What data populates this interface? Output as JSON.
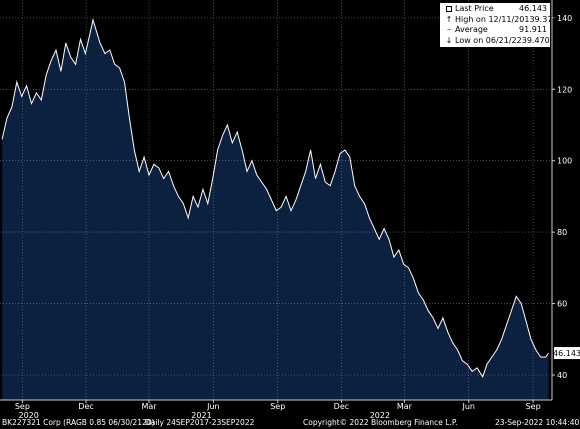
{
  "chart_data": {
    "type": "area",
    "title": "",
    "xlabel": "",
    "ylabel": "",
    "ylim": [
      33,
      145
    ],
    "yticks": [
      40,
      60,
      80,
      100,
      120,
      140
    ],
    "xlim": [
      "2020-07-31",
      "2022-09-28"
    ],
    "month_ticks": [
      "Sep",
      "Dec",
      "Mar",
      "Jun",
      "Sep",
      "Dec",
      "Mar",
      "Jun",
      "Sep"
    ],
    "month_tick_dates": [
      "2020-09-01",
      "2020-12-01",
      "2021-03-01",
      "2021-06-01",
      "2021-09-01",
      "2021-12-01",
      "2022-03-01",
      "2022-06-01",
      "2022-09-01"
    ],
    "year_labels": [
      "2020",
      "2021",
      "2022"
    ],
    "year_label_dates": [
      "2020-09-10",
      "2021-05-15",
      "2022-01-25"
    ],
    "grid": true,
    "last_value_label": "46.143",
    "series": [
      {
        "values": [
          [
            "2020-08-03",
            106
          ],
          [
            "2020-08-10",
            112
          ],
          [
            "2020-08-17",
            115
          ],
          [
            "2020-08-24",
            122
          ],
          [
            "2020-08-31",
            118
          ],
          [
            "2020-09-07",
            121
          ],
          [
            "2020-09-14",
            116
          ],
          [
            "2020-09-21",
            119
          ],
          [
            "2020-09-28",
            117
          ],
          [
            "2020-10-05",
            124
          ],
          [
            "2020-10-12",
            128
          ],
          [
            "2020-10-19",
            131
          ],
          [
            "2020-10-26",
            125
          ],
          [
            "2020-11-02",
            133
          ],
          [
            "2020-11-09",
            129
          ],
          [
            "2020-11-16",
            127
          ],
          [
            "2020-11-23",
            134
          ],
          [
            "2020-11-30",
            130
          ],
          [
            "2020-12-07",
            136
          ],
          [
            "2020-12-11",
            139.4
          ],
          [
            "2020-12-21",
            133
          ],
          [
            "2020-12-28",
            130
          ],
          [
            "2021-01-04",
            131
          ],
          [
            "2021-01-11",
            127
          ],
          [
            "2021-01-18",
            126
          ],
          [
            "2021-01-25",
            122
          ],
          [
            "2021-02-01",
            112
          ],
          [
            "2021-02-08",
            103
          ],
          [
            "2021-02-15",
            97
          ],
          [
            "2021-02-22",
            101
          ],
          [
            "2021-03-01",
            96
          ],
          [
            "2021-03-08",
            99
          ],
          [
            "2021-03-15",
            98
          ],
          [
            "2021-03-22",
            95
          ],
          [
            "2021-03-29",
            97
          ],
          [
            "2021-04-05",
            93
          ],
          [
            "2021-04-12",
            90
          ],
          [
            "2021-04-19",
            88
          ],
          [
            "2021-04-26",
            84
          ],
          [
            "2021-05-03",
            90
          ],
          [
            "2021-05-10",
            87
          ],
          [
            "2021-05-17",
            92
          ],
          [
            "2021-05-24",
            88
          ],
          [
            "2021-05-31",
            95
          ],
          [
            "2021-06-07",
            103
          ],
          [
            "2021-06-14",
            107
          ],
          [
            "2021-06-21",
            110
          ],
          [
            "2021-06-28",
            105
          ],
          [
            "2021-07-05",
            108
          ],
          [
            "2021-07-12",
            103
          ],
          [
            "2021-07-19",
            97
          ],
          [
            "2021-07-26",
            100
          ],
          [
            "2021-08-02",
            96
          ],
          [
            "2021-08-09",
            94
          ],
          [
            "2021-08-16",
            92
          ],
          [
            "2021-08-23",
            89
          ],
          [
            "2021-08-30",
            86
          ],
          [
            "2021-09-06",
            87
          ],
          [
            "2021-09-13",
            90
          ],
          [
            "2021-09-20",
            86
          ],
          [
            "2021-09-27",
            89
          ],
          [
            "2021-10-04",
            93
          ],
          [
            "2021-10-11",
            97
          ],
          [
            "2021-10-18",
            103
          ],
          [
            "2021-10-25",
            95
          ],
          [
            "2021-11-01",
            99
          ],
          [
            "2021-11-08",
            94
          ],
          [
            "2021-11-15",
            93
          ],
          [
            "2021-11-22",
            97
          ],
          [
            "2021-11-29",
            102
          ],
          [
            "2021-12-06",
            103
          ],
          [
            "2021-12-13",
            101
          ],
          [
            "2021-12-20",
            93
          ],
          [
            "2021-12-27",
            90
          ],
          [
            "2022-01-03",
            88
          ],
          [
            "2022-01-10",
            84
          ],
          [
            "2022-01-17",
            81
          ],
          [
            "2022-01-24",
            78
          ],
          [
            "2022-01-31",
            81
          ],
          [
            "2022-02-07",
            78
          ],
          [
            "2022-02-14",
            73
          ],
          [
            "2022-02-21",
            75
          ],
          [
            "2022-02-28",
            71
          ],
          [
            "2022-03-07",
            70
          ],
          [
            "2022-03-14",
            67
          ],
          [
            "2022-03-21",
            63
          ],
          [
            "2022-03-28",
            61
          ],
          [
            "2022-04-04",
            58
          ],
          [
            "2022-04-11",
            56
          ],
          [
            "2022-04-18",
            53
          ],
          [
            "2022-04-25",
            56
          ],
          [
            "2022-05-02",
            52
          ],
          [
            "2022-05-09",
            49
          ],
          [
            "2022-05-16",
            47
          ],
          [
            "2022-05-23",
            44
          ],
          [
            "2022-05-30",
            43
          ],
          [
            "2022-06-06",
            41
          ],
          [
            "2022-06-13",
            42
          ],
          [
            "2022-06-21",
            39.5
          ],
          [
            "2022-06-27",
            43
          ],
          [
            "2022-07-04",
            45
          ],
          [
            "2022-07-11",
            47
          ],
          [
            "2022-07-18",
            50
          ],
          [
            "2022-07-25",
            54
          ],
          [
            "2022-08-01",
            58
          ],
          [
            "2022-08-08",
            62
          ],
          [
            "2022-08-15",
            60
          ],
          [
            "2022-08-22",
            55
          ],
          [
            "2022-08-29",
            50
          ],
          [
            "2022-09-05",
            47
          ],
          [
            "2022-09-12",
            45
          ],
          [
            "2022-09-19",
            45
          ],
          [
            "2022-09-23",
            46.143
          ]
        ]
      }
    ]
  },
  "legend": {
    "rows": [
      {
        "label": "Last Price",
        "value": "46.143",
        "symbol": "square"
      },
      {
        "label": "High on 12/11/20",
        "value": "139.376",
        "symbol": "arrow-up"
      },
      {
        "label": "Average",
        "value": "91.911",
        "symbol": "dash"
      },
      {
        "label": "Low on 06/21/22",
        "value": "39.470",
        "symbol": "arrow-down"
      }
    ]
  },
  "footer": {
    "security": "BK227321 Corp (RAGB 0.85 06/30/2120)",
    "range": "Daily 24SEP2017-23SEP2022",
    "copyright": "Copyright© 2022 Bloomberg Finance L.P.",
    "timestamp": "23-Sep-2022 10:44:40"
  },
  "colors": {
    "background": "#000000",
    "plot_fill": "#0c2040",
    "line": "#ffffff",
    "grid": "#a6a6a6"
  }
}
